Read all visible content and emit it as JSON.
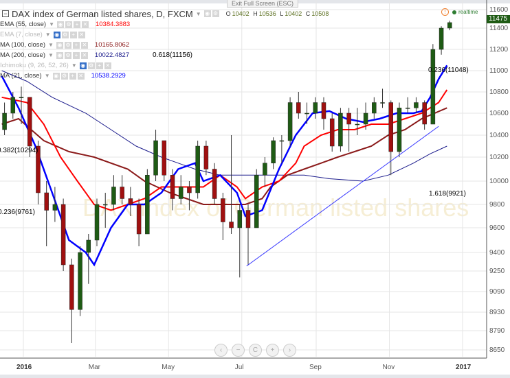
{
  "window": {
    "exit_fullscreen": "Exit Full Screen (ESC)"
  },
  "header": {
    "title": "DAX index of German listed shares, D, FXCM",
    "o_label": "O",
    "o": "10402",
    "h_label": "H",
    "h": "10536",
    "l_label": "L",
    "l": "10402",
    "c_label": "C",
    "c": "10508",
    "realtime": "realtime"
  },
  "watermark": "DAX index of German listed shares",
  "indicators": [
    {
      "name": "EMA (55, close)",
      "value": "10384.3883",
      "color": "#ff0000",
      "visible": true
    },
    {
      "name": "EMA (7, close)",
      "value": "",
      "color": "#bbbbbb",
      "visible": false
    },
    {
      "name": "MA (100, close)",
      "value": "10165.8062",
      "color": "#8b1a1a",
      "visible": true
    },
    {
      "name": "MA (200, close)",
      "value": "10022.4827",
      "color": "#1a1a8b",
      "visible": true
    },
    {
      "name": "Ichimoku (9, 26, 52, 26)",
      "value": "",
      "color": "#bbbbbb",
      "visible": false
    },
    {
      "name": "MA (21, close)",
      "value": "10538.2929",
      "color": "#0000ff",
      "visible": true
    }
  ],
  "fib_labels": [
    {
      "text": "0.618(11156)",
      "color": "#333333"
    },
    {
      "text": "0.236(11048)",
      "color": "#3b3bff"
    },
    {
      "text": "0.382(10294)",
      "color": "#00e5ff"
    },
    {
      "text": "0.236(9761)",
      "color": "#ff40ff"
    },
    {
      "text": "1.618(9921)",
      "color": "#3b3bff"
    }
  ],
  "nav_buttons": [
    "‹",
    "−",
    "C",
    "+",
    "›"
  ],
  "chart_data": {
    "type": "candlestick",
    "scale": "log",
    "last_price": "11475",
    "x_ticks": [
      {
        "label": "2016",
        "date": "2016-01-01",
        "bold": true
      },
      {
        "label": "Mar",
        "date": "2016-03-01"
      },
      {
        "label": "May",
        "date": "2016-05-01"
      },
      {
        "label": "Jul",
        "date": "2016-07-01"
      },
      {
        "label": "Sep",
        "date": "2016-09-01"
      },
      {
        "label": "Nov",
        "date": "2016-11-01"
      },
      {
        "label": "2017",
        "date": "2017-01-01",
        "bold": true
      }
    ],
    "y_ticks": [
      11600,
      11400,
      11200,
      11000,
      10800,
      10600,
      10400,
      10200,
      10000,
      9800,
      9600,
      9400,
      9250,
      9090,
      8930,
      8790,
      8650
    ],
    "colors": {
      "up": "#1e5b14",
      "down": "#a01010",
      "wick": "#333333"
    },
    "candles": [
      [
        "2015-12-14",
        10450,
        10700,
        10400,
        10600
      ],
      [
        "2015-12-21",
        10600,
        10800,
        10550,
        10750
      ],
      [
        "2015-12-28",
        10750,
        10850,
        10500,
        10750
      ],
      [
        "2016-01-04",
        10750,
        10750,
        10200,
        10300
      ],
      [
        "2016-01-11",
        10300,
        10350,
        9800,
        9900
      ],
      [
        "2016-01-18",
        9900,
        10000,
        9450,
        9750
      ],
      [
        "2016-01-25",
        9750,
        9950,
        9650,
        9800
      ],
      [
        "2016-02-01",
        9800,
        9850,
        9250,
        9300
      ],
      [
        "2016-02-08",
        9300,
        9350,
        8700,
        8950
      ],
      [
        "2016-02-15",
        8950,
        9450,
        8900,
        9400
      ],
      [
        "2016-02-22",
        9400,
        9550,
        9150,
        9500
      ],
      [
        "2016-02-29",
        9500,
        9850,
        9450,
        9800
      ],
      [
        "2016-03-07",
        9800,
        9900,
        9600,
        9800
      ],
      [
        "2016-03-14",
        9800,
        10050,
        9750,
        9950
      ],
      [
        "2016-03-21",
        9950,
        10050,
        9800,
        9850
      ],
      [
        "2016-03-28",
        9850,
        9950,
        9700,
        9800
      ],
      [
        "2016-04-04",
        9800,
        9850,
        9450,
        9550
      ],
      [
        "2016-04-11",
        9550,
        10100,
        9550,
        10050
      ],
      [
        "2016-04-18",
        10050,
        10450,
        10000,
        10350
      ],
      [
        "2016-04-25",
        10350,
        10350,
        10000,
        10050
      ],
      [
        "2016-05-02",
        10050,
        10100,
        9750,
        9850
      ],
      [
        "2016-05-09",
        9850,
        10050,
        9800,
        9950
      ],
      [
        "2016-05-16",
        9950,
        10000,
        9750,
        9900
      ],
      [
        "2016-05-23",
        9900,
        10350,
        9850,
        10300
      ],
      [
        "2016-05-30",
        10300,
        10350,
        10050,
        10100
      ],
      [
        "2016-06-06",
        10100,
        10150,
        9800,
        9850
      ],
      [
        "2016-06-13",
        9850,
        9900,
        9500,
        9650
      ],
      [
        "2016-06-20",
        9650,
        10400,
        9550,
        9600
      ],
      [
        "2016-06-27",
        9600,
        9800,
        9200,
        9750
      ],
      [
        "2016-07-04",
        9750,
        9800,
        9300,
        9600
      ],
      [
        "2016-07-11",
        9600,
        10100,
        9600,
        10050
      ],
      [
        "2016-07-18",
        10050,
        10200,
        9950,
        10150
      ],
      [
        "2016-07-25",
        10150,
        10380,
        10100,
        10350
      ],
      [
        "2016-08-01",
        10350,
        10400,
        10150,
        10350
      ],
      [
        "2016-08-08",
        10350,
        10750,
        10300,
        10700
      ],
      [
        "2016-08-15",
        10700,
        10800,
        10550,
        10600
      ],
      [
        "2016-08-22",
        10600,
        10700,
        10500,
        10600
      ],
      [
        "2016-08-29",
        10600,
        10750,
        10550,
        10700
      ],
      [
        "2016-09-05",
        10700,
        10750,
        10450,
        10550
      ],
      [
        "2016-09-12",
        10550,
        10600,
        10250,
        10300
      ],
      [
        "2016-09-19",
        10300,
        10650,
        10250,
        10600
      ],
      [
        "2016-09-26",
        10600,
        10650,
        10250,
        10500
      ],
      [
        "2016-10-03",
        10500,
        10650,
        10400,
        10500
      ],
      [
        "2016-10-10",
        10500,
        10700,
        10450,
        10600
      ],
      [
        "2016-10-17",
        10600,
        10750,
        10550,
        10700
      ],
      [
        "2016-10-24",
        10700,
        10830,
        10650,
        10700
      ],
      [
        "2016-10-31",
        10700,
        10720,
        10050,
        10250
      ],
      [
        "2016-11-07",
        10250,
        10700,
        10200,
        10650
      ],
      [
        "2016-11-14",
        10650,
        10750,
        10600,
        10650
      ],
      [
        "2016-11-21",
        10650,
        10750,
        10600,
        10700
      ],
      [
        "2016-11-28",
        10700,
        10720,
        10450,
        10500
      ],
      [
        "2016-12-05",
        10500,
        11250,
        10500,
        11200
      ],
      [
        "2016-12-12",
        11200,
        11420,
        11150,
        11400
      ],
      [
        "2016-12-19",
        11400,
        11480,
        11380,
        11460
      ]
    ],
    "series": [
      {
        "name": "MA (21, close)",
        "color": "#0000ff",
        "width": 2.5,
        "points": [
          [
            "2015-12-14",
            10950
          ],
          [
            "2015-12-28",
            10650
          ],
          [
            "2016-01-11",
            10300
          ],
          [
            "2016-01-25",
            9900
          ],
          [
            "2016-02-08",
            9500
          ],
          [
            "2016-02-22",
            9400
          ],
          [
            "2016-02-29",
            9300
          ],
          [
            "2016-03-14",
            9600
          ],
          [
            "2016-03-28",
            9800
          ],
          [
            "2016-04-11",
            9800
          ],
          [
            "2016-04-25",
            9900
          ],
          [
            "2016-05-09",
            10100
          ],
          [
            "2016-05-23",
            10150
          ],
          [
            "2016-05-30",
            10000
          ],
          [
            "2016-06-13",
            10050
          ],
          [
            "2016-06-27",
            9900
          ],
          [
            "2016-07-04",
            9700
          ],
          [
            "2016-07-18",
            9750
          ],
          [
            "2016-08-01",
            10100
          ],
          [
            "2016-08-15",
            10400
          ],
          [
            "2016-08-29",
            10600
          ],
          [
            "2016-09-12",
            10620
          ],
          [
            "2016-09-26",
            10550
          ],
          [
            "2016-10-10",
            10520
          ],
          [
            "2016-10-24",
            10550
          ],
          [
            "2016-11-07",
            10600
          ],
          [
            "2016-11-21",
            10600
          ],
          [
            "2016-11-28",
            10620
          ],
          [
            "2016-12-05",
            10750
          ],
          [
            "2016-12-12",
            10920
          ],
          [
            "2016-12-19",
            11050
          ]
        ]
      },
      {
        "name": "EMA (55, close)",
        "color": "#ff0000",
        "width": 2,
        "points": [
          [
            "2015-12-14",
            10750
          ],
          [
            "2016-01-04",
            10700
          ],
          [
            "2016-01-18",
            10500
          ],
          [
            "2016-02-01",
            10200
          ],
          [
            "2016-02-15",
            10000
          ],
          [
            "2016-02-29",
            9800
          ],
          [
            "2016-03-14",
            9750
          ],
          [
            "2016-03-28",
            9800
          ],
          [
            "2016-04-11",
            9850
          ],
          [
            "2016-04-25",
            9950
          ],
          [
            "2016-05-16",
            9950
          ],
          [
            "2016-05-30",
            9950
          ],
          [
            "2016-06-13",
            10050
          ],
          [
            "2016-06-27",
            9950
          ],
          [
            "2016-07-04",
            9850
          ],
          [
            "2016-07-18",
            9950
          ],
          [
            "2016-08-01",
            10000
          ],
          [
            "2016-08-15",
            10150
          ],
          [
            "2016-08-22",
            10300
          ],
          [
            "2016-09-05",
            10400
          ],
          [
            "2016-09-19",
            10450
          ],
          [
            "2016-10-03",
            10450
          ],
          [
            "2016-10-17",
            10500
          ],
          [
            "2016-10-31",
            10500
          ],
          [
            "2016-11-14",
            10550
          ],
          [
            "2016-11-28",
            10600
          ],
          [
            "2016-12-12",
            10700
          ],
          [
            "2016-12-19",
            10820
          ]
        ]
      },
      {
        "name": "MA (100, close)",
        "color": "#8b1a1a",
        "width": 2,
        "points": [
          [
            "2015-12-14",
            10500
          ],
          [
            "2015-12-28",
            10550
          ],
          [
            "2016-01-18",
            10350
          ],
          [
            "2016-02-08",
            10250
          ],
          [
            "2016-02-29",
            10200
          ],
          [
            "2016-03-28",
            10100
          ],
          [
            "2016-04-11",
            10000
          ],
          [
            "2016-05-02",
            9900
          ],
          [
            "2016-05-16",
            9850
          ],
          [
            "2016-05-30",
            9800
          ],
          [
            "2016-06-20",
            9800
          ],
          [
            "2016-07-04",
            9800
          ],
          [
            "2016-07-18",
            9850
          ],
          [
            "2016-07-25",
            9950
          ],
          [
            "2016-08-08",
            10050
          ],
          [
            "2016-08-22",
            10100
          ],
          [
            "2016-09-05",
            10150
          ],
          [
            "2016-09-19",
            10200
          ],
          [
            "2016-10-03",
            10250
          ],
          [
            "2016-10-17",
            10300
          ],
          [
            "2016-10-31",
            10400
          ],
          [
            "2016-11-14",
            10450
          ],
          [
            "2016-11-28",
            10550
          ],
          [
            "2016-12-19",
            10650
          ]
        ]
      },
      {
        "name": "MA (200, close)",
        "color": "#1a1a8b",
        "width": 1,
        "points": [
          [
            "2015-12-14",
            11000
          ],
          [
            "2016-01-04",
            10900
          ],
          [
            "2016-01-25",
            10750
          ],
          [
            "2016-02-22",
            10600
          ],
          [
            "2016-03-14",
            10450
          ],
          [
            "2016-04-04",
            10300
          ],
          [
            "2016-04-25",
            10200
          ],
          [
            "2016-05-23",
            10100
          ],
          [
            "2016-06-13",
            10050
          ],
          [
            "2016-07-04",
            10050
          ],
          [
            "2016-08-01",
            10050
          ],
          [
            "2016-08-22",
            10050
          ],
          [
            "2016-09-12",
            10020
          ],
          [
            "2016-10-10",
            10000
          ],
          [
            "2016-10-31",
            10050
          ],
          [
            "2016-11-21",
            10150
          ],
          [
            "2016-12-05",
            10230
          ],
          [
            "2016-12-19",
            10300
          ]
        ]
      }
    ],
    "trendline": {
      "color": "#3b3bff",
      "from": [
        "2016-07-05",
        9290
      ],
      "to": [
        "2016-12-12",
        10480
      ]
    }
  }
}
